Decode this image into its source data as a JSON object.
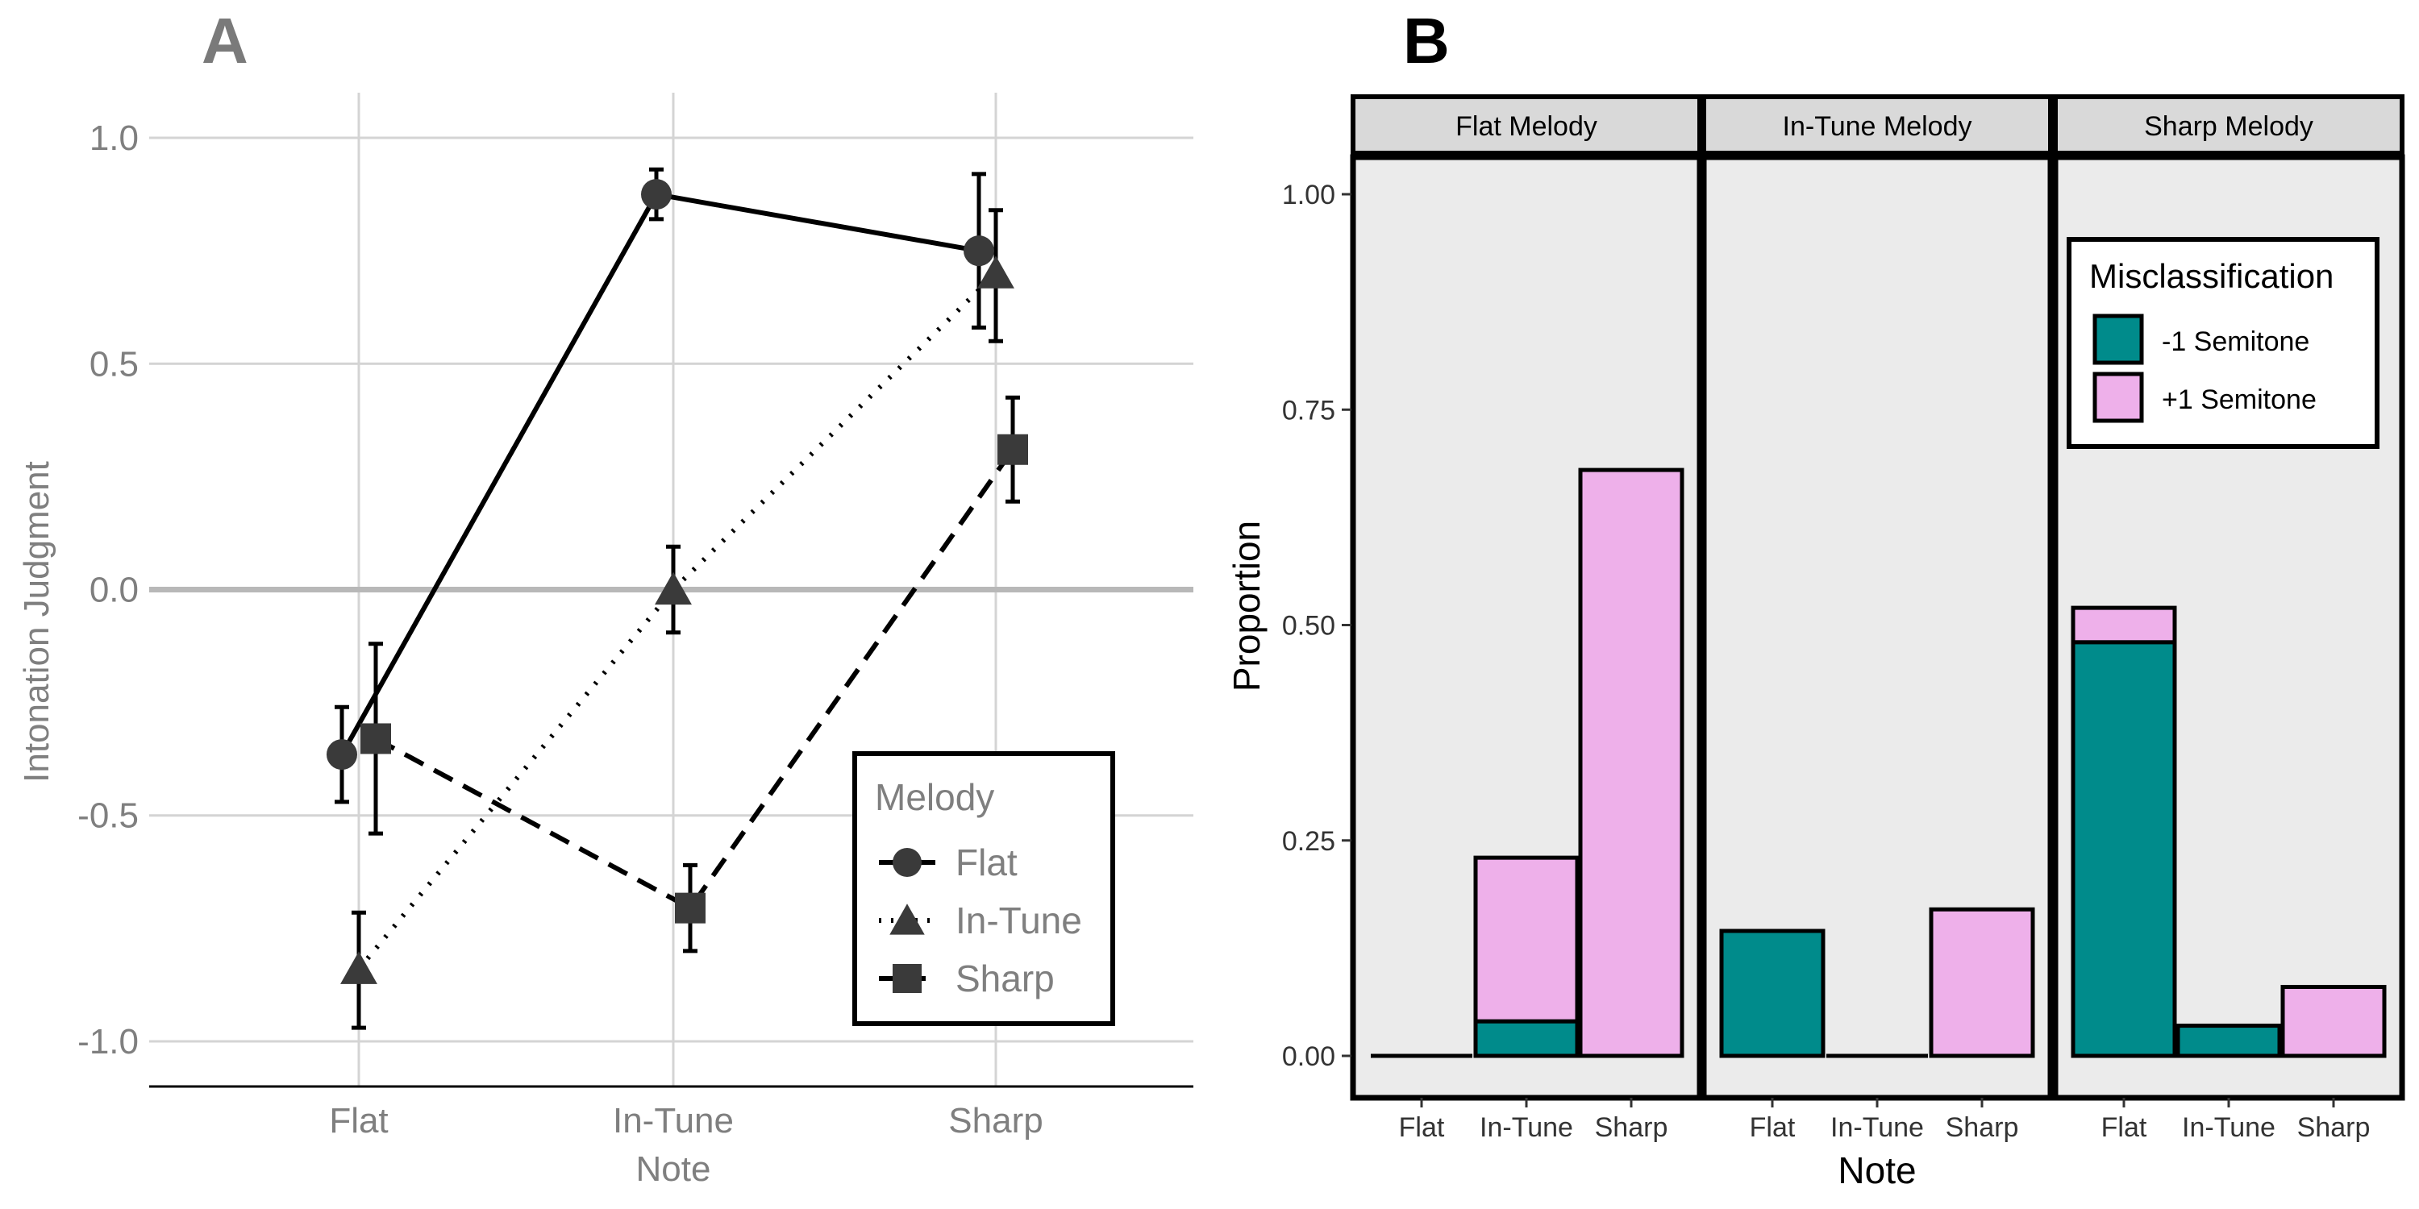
{
  "colors": {
    "axis_text_a": "#7f7f7f",
    "grid_a": "#d4d4d4",
    "zero_line_a": "#b8b8b8",
    "line_a": "#000000",
    "marker_a": "#3a3a3a",
    "panel_b_bg": "#ebebeb",
    "strip_bg": "#d9d9d9",
    "minus1": "#008b8b",
    "plus1": "#eeb0ea",
    "black": "#000000"
  },
  "chart_data": [
    {
      "panel_label": "A",
      "type": "line",
      "xlabel": "Note",
      "ylabel": "Intonation Judgment",
      "categories": [
        "Flat",
        "In-Tune",
        "Sharp"
      ],
      "ylim": [
        -1.1,
        1.1
      ],
      "yticks": [
        1.0,
        0.5,
        0.0,
        -0.5,
        -1.0
      ],
      "ytick_labels": [
        "1.0",
        "0.5",
        "0.0",
        "-0.5",
        "-1.0"
      ],
      "grid": true,
      "legend": {
        "title": "Melody",
        "position": "bottom-right"
      },
      "series": [
        {
          "name": "Flat",
          "marker": "circle",
          "line": "solid",
          "dodge": -0.1,
          "values": [
            -0.365,
            0.875,
            0.75
          ],
          "err_low": [
            -0.47,
            0.82,
            0.58
          ],
          "err_high": [
            -0.26,
            0.93,
            0.92
          ]
        },
        {
          "name": "In-Tune",
          "marker": "triangle",
          "line": "dotted",
          "dodge": 0.0,
          "values": [
            -0.84,
            0.0,
            0.7
          ],
          "err_low": [
            -0.97,
            -0.095,
            0.55
          ],
          "err_high": [
            -0.715,
            0.095,
            0.84
          ]
        },
        {
          "name": "Sharp",
          "marker": "square",
          "line": "dashed",
          "dodge": 0.1,
          "values": [
            -0.33,
            -0.705,
            0.31
          ],
          "err_low": [
            -0.54,
            -0.8,
            0.195
          ],
          "err_high": [
            -0.12,
            -0.61,
            0.425
          ]
        }
      ]
    },
    {
      "panel_label": "B",
      "type": "bar",
      "stacked": true,
      "xlabel": "Note",
      "ylabel": "Proportion",
      "categories": [
        "Flat",
        "In-Tune",
        "Sharp"
      ],
      "ylim": [
        0,
        1.05
      ],
      "yticks": [
        0.0,
        0.25,
        0.5,
        0.75,
        1.0
      ],
      "ytick_labels": [
        "0.00",
        "0.25",
        "0.50",
        "0.75",
        "1.00"
      ],
      "facets": [
        "Flat Melody",
        "In-Tune Melody",
        "Sharp Melody"
      ],
      "legend": {
        "title": "Misclassification",
        "position": "top-right"
      },
      "series": [
        {
          "name": "-1 Semitone",
          "color_key": "minus1",
          "values": [
            [
              0.0,
              0.04,
              0.0
            ],
            [
              0.145,
              0.0,
              0.0
            ],
            [
              0.48,
              0.035,
              0.0
            ]
          ]
        },
        {
          "name": "+1 Semitone",
          "color_key": "plus1",
          "values": [
            [
              0.0,
              0.19,
              0.68
            ],
            [
              0.0,
              0.0,
              0.17
            ],
            [
              0.04,
              0.0,
              0.08
            ]
          ]
        }
      ]
    }
  ]
}
